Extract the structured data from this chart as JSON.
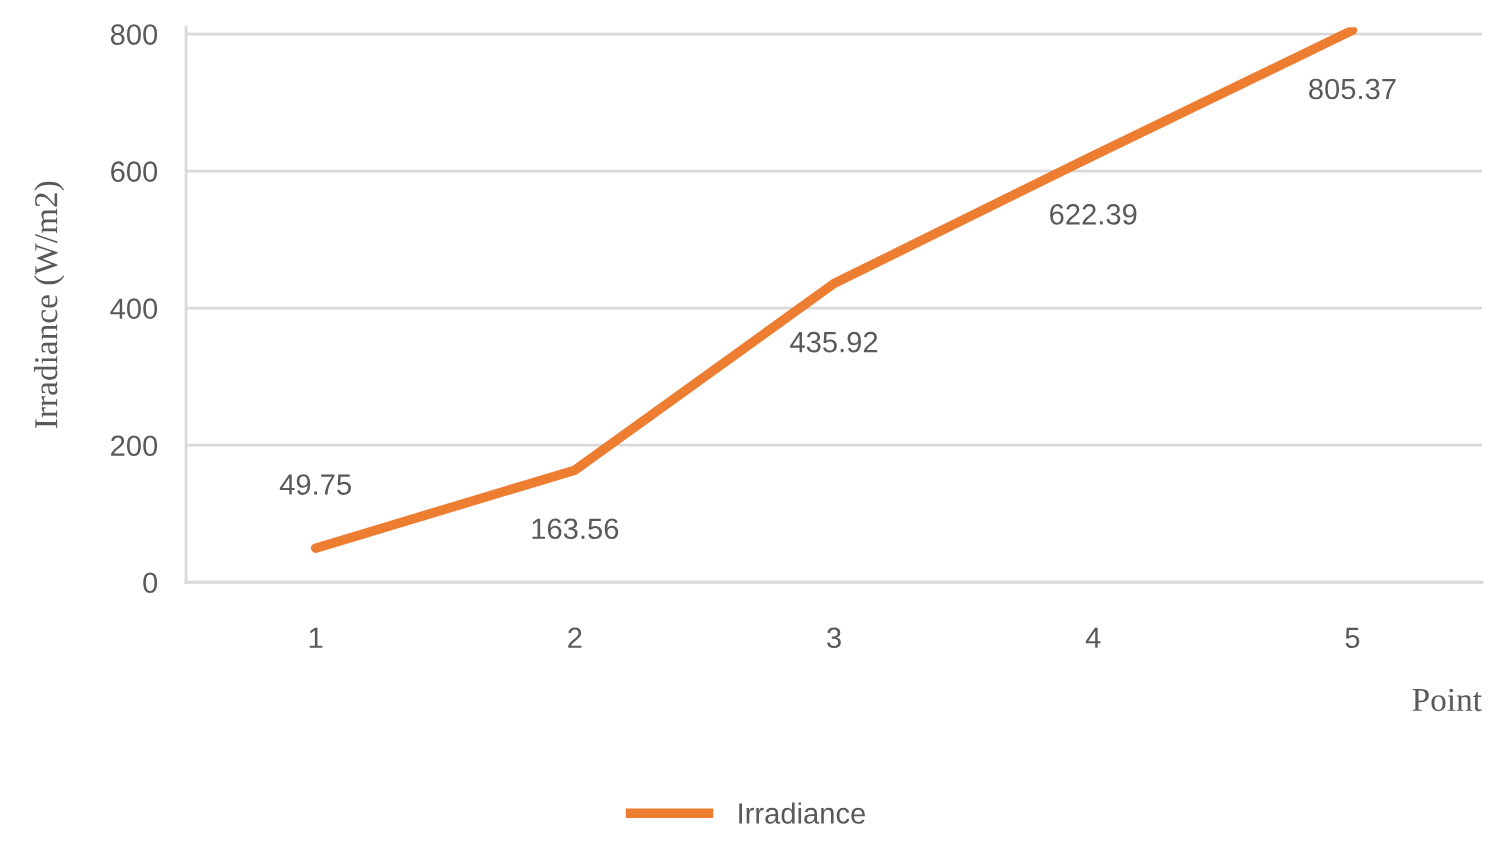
{
  "chart_data": {
    "type": "line",
    "xlabel": "Point",
    "ylabel": "Irradiance (W/m2)",
    "categories": [
      "1",
      "2",
      "3",
      "4",
      "5"
    ],
    "series": [
      {
        "name": "Irradiance",
        "color": "#ed7d31",
        "values": [
          49.75,
          163.56,
          435.92,
          622.39,
          805.37
        ]
      }
    ],
    "ylim": [
      0,
      810
    ],
    "yticks": [
      0,
      200,
      400,
      600,
      800
    ],
    "grid": "y",
    "legend": "bottom",
    "data_labels": true
  }
}
